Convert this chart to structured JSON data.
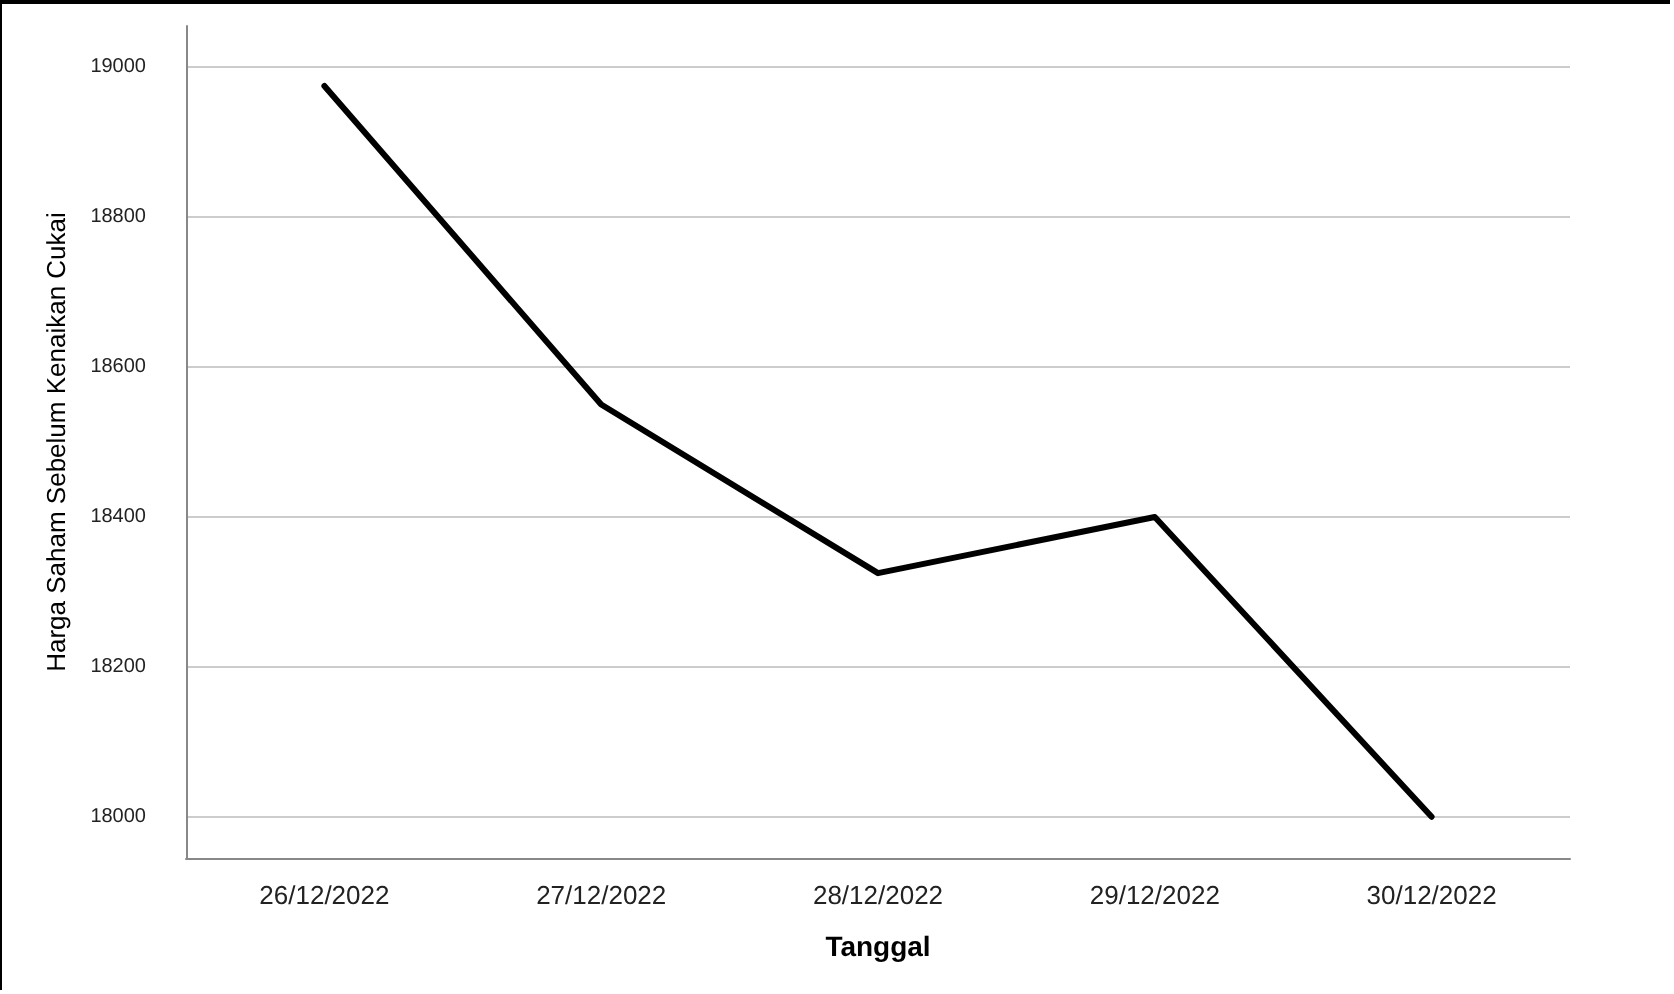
{
  "chart_data": {
    "type": "line",
    "xlabel": "Tanggal",
    "ylabel": "Harga Saham Sebelum Kenaikan Cukai",
    "categories": [
      "26/12/2022",
      "27/12/2022",
      "28/12/2022",
      "29/12/2022",
      "30/12/2022"
    ],
    "series": [
      {
        "color": "#000000",
        "values": [
          18975,
          18550,
          18325,
          18400,
          18000
        ]
      }
    ],
    "ylim": [
      17945,
      19055
    ],
    "yticks": [
      18000,
      18200,
      18400,
      18600,
      18800,
      19000
    ],
    "grid": "y",
    "marker": "none",
    "line_style": "solid"
  }
}
